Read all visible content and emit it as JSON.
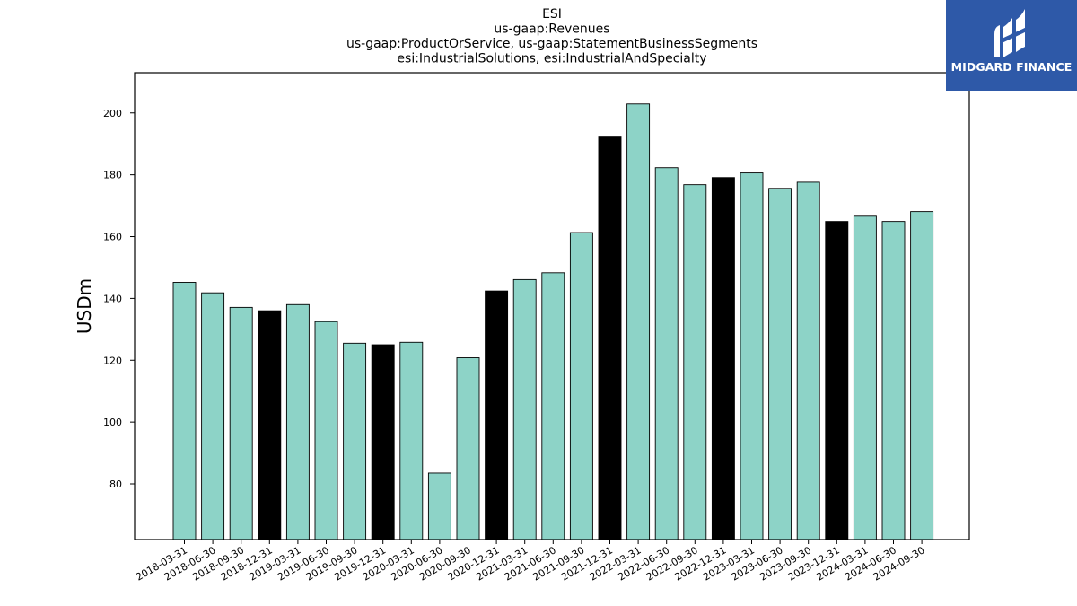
{
  "chart_data": {
    "type": "bar",
    "title_lines": [
      "ESI",
      "us-gaap:Revenues",
      "us-gaap:ProductOrService, us-gaap:StatementBusinessSegments",
      "esi:IndustrialSolutions, esi:IndustrialAndSpecialty"
    ],
    "xlabel": "",
    "ylabel": "USDm",
    "ylim": [
      62,
      213
    ],
    "yticks": [
      80,
      100,
      120,
      140,
      160,
      180,
      200
    ],
    "grid": false,
    "colors": {
      "regular": "#8dd3c7",
      "year_end": "#000000",
      "edge": "#000000"
    },
    "categories": [
      "2018-03-31",
      "2018-06-30",
      "2018-09-30",
      "2018-12-31",
      "2019-03-31",
      "2019-06-30",
      "2019-09-30",
      "2019-12-31",
      "2020-03-31",
      "2020-06-30",
      "2020-09-30",
      "2020-12-31",
      "2021-03-31",
      "2021-06-30",
      "2021-09-30",
      "2021-12-31",
      "2022-03-31",
      "2022-06-30",
      "2022-09-30",
      "2022-12-31",
      "2023-03-31",
      "2023-06-30",
      "2023-09-30",
      "2023-12-31",
      "2024-03-31",
      "2024-06-30",
      "2024-09-30"
    ],
    "values": [
      145.2,
      141.8,
      137.1,
      136.0,
      138.0,
      132.5,
      125.5,
      125.0,
      125.8,
      83.5,
      120.8,
      142.4,
      146.1,
      148.3,
      161.3,
      192.2,
      202.9,
      182.3,
      176.8,
      179.1,
      180.6,
      175.6,
      177.6,
      164.9,
      166.6,
      164.9,
      168.1
    ],
    "year_end": [
      false,
      false,
      false,
      true,
      false,
      false,
      false,
      true,
      false,
      false,
      false,
      true,
      false,
      false,
      false,
      true,
      false,
      false,
      false,
      true,
      false,
      false,
      false,
      true,
      false,
      false,
      false
    ]
  },
  "logo": {
    "text": "MIDGARD FINANCE"
  }
}
